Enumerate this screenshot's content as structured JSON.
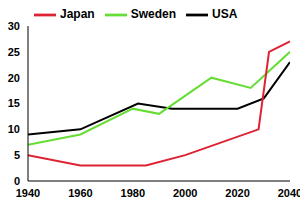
{
  "chart_data": {
    "type": "line",
    "xlim": [
      1940,
      2040
    ],
    "xticks": [
      1940,
      1960,
      1980,
      2000,
      2020,
      2040
    ],
    "ylim": [
      0,
      30
    ],
    "yticks": [
      0,
      5,
      10,
      15,
      20,
      25,
      30
    ],
    "grid": false,
    "legend": "top",
    "series": [
      {
        "name": "USA",
        "color": "#000000",
        "x": [
          1940,
          1960,
          1982,
          1995,
          2020,
          2030,
          2040
        ],
        "values": [
          9,
          10,
          15,
          14,
          14,
          16,
          23
        ]
      },
      {
        "name": "Sweden",
        "color": "#66dd33",
        "x": [
          1940,
          1960,
          1980,
          1990,
          2010,
          2025,
          2040
        ],
        "values": [
          7,
          9,
          14,
          13,
          20,
          18,
          25
        ]
      },
      {
        "name": "Japan",
        "color": "#dd2233",
        "x": [
          1940,
          1960,
          1985,
          2000,
          2028,
          2032,
          2040
        ],
        "values": [
          5,
          3,
          3,
          5,
          10,
          25,
          27
        ]
      }
    ]
  }
}
